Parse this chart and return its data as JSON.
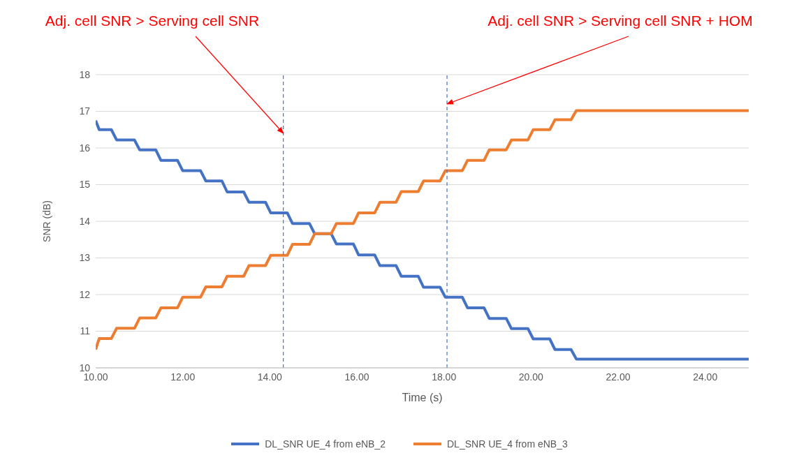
{
  "chart_data": {
    "type": "line",
    "xlabel": "Time (s)",
    "ylabel": "SNR (dB)",
    "x": [
      10,
      10.08,
      10.36,
      10.48,
      10.89,
      11.01,
      11.38,
      11.5,
      11.88,
      12,
      12.41,
      12.53,
      12.9,
      13.02,
      13.4,
      13.52,
      13.9,
      14.02,
      14.4,
      14.52,
      14.91,
      15.03,
      15.41,
      15.53,
      15.92,
      16.04,
      16.41,
      16.53,
      16.9,
      17.02,
      17.41,
      17.53,
      17.91,
      18.03,
      18.42,
      18.54,
      18.92,
      19.04,
      19.43,
      19.55,
      19.93,
      20.05,
      20.43,
      20.55,
      20.92,
      21.04,
      25
    ],
    "series": [
      {
        "name": "DL_SNR UE_4 from eNB_2",
        "color": "#4472c4",
        "values": [
          16.75,
          16.5,
          16.5,
          16.22,
          16.22,
          15.95,
          15.95,
          15.66,
          15.66,
          15.38,
          15.38,
          15.1,
          15.1,
          14.8,
          14.8,
          14.52,
          14.52,
          14.23,
          14.23,
          13.94,
          13.94,
          13.66,
          13.66,
          13.38,
          13.38,
          13.08,
          13.08,
          12.79,
          12.79,
          12.5,
          12.5,
          12.2,
          12.2,
          11.93,
          11.93,
          11.64,
          11.64,
          11.35,
          11.35,
          11.07,
          11.07,
          10.79,
          10.79,
          10.5,
          10.5,
          10.24,
          10.24
        ]
      },
      {
        "name": "DL_SNR UE_4 from eNB_3",
        "color": "#ed7d31",
        "values": [
          10.5,
          10.8,
          10.8,
          11.08,
          11.08,
          11.36,
          11.36,
          11.64,
          11.64,
          11.93,
          11.93,
          12.21,
          12.21,
          12.5,
          12.5,
          12.79,
          12.79,
          13.07,
          13.07,
          13.37,
          13.37,
          13.66,
          13.66,
          13.94,
          13.94,
          14.23,
          14.23,
          14.52,
          14.52,
          14.81,
          14.81,
          15.1,
          15.1,
          15.38,
          15.38,
          15.66,
          15.66,
          15.95,
          15.95,
          16.22,
          16.22,
          16.5,
          16.5,
          16.77,
          16.77,
          17.02,
          17.02
        ]
      }
    ],
    "xlim": [
      10,
      25
    ],
    "xticks": [
      {
        "value": 10,
        "label": "10.00"
      },
      {
        "value": 12,
        "label": "12.00"
      },
      {
        "value": 14,
        "label": "14.00"
      },
      {
        "value": 16,
        "label": "16.00"
      },
      {
        "value": 18,
        "label": "18.00"
      },
      {
        "value": 20,
        "label": "20.00"
      },
      {
        "value": 22,
        "label": "22.00"
      },
      {
        "value": 24,
        "label": "24.00"
      }
    ],
    "ylim": [
      10,
      18
    ],
    "yticks": [
      10,
      11,
      12,
      13,
      14,
      15,
      16,
      17,
      18
    ],
    "ref_lines": [
      {
        "axis": "x",
        "value": 14.31,
        "color": "#4472c4",
        "line_style": "dashed"
      },
      {
        "axis": "x",
        "value": 18.07,
        "color": "#4472c4",
        "line_style": "dashed"
      }
    ],
    "annotations": [
      {
        "text": "Adj. cell SNR > Serving cell SNR",
        "x": 14.31,
        "y": 16.4
      },
      {
        "text": "Adj. cell SNR > Serving cell SNR + HOM",
        "x": 18.07,
        "y": 17.2
      }
    ],
    "grid": "y",
    "legend": "bottom",
    "marker": "none",
    "line_style": "solid"
  }
}
